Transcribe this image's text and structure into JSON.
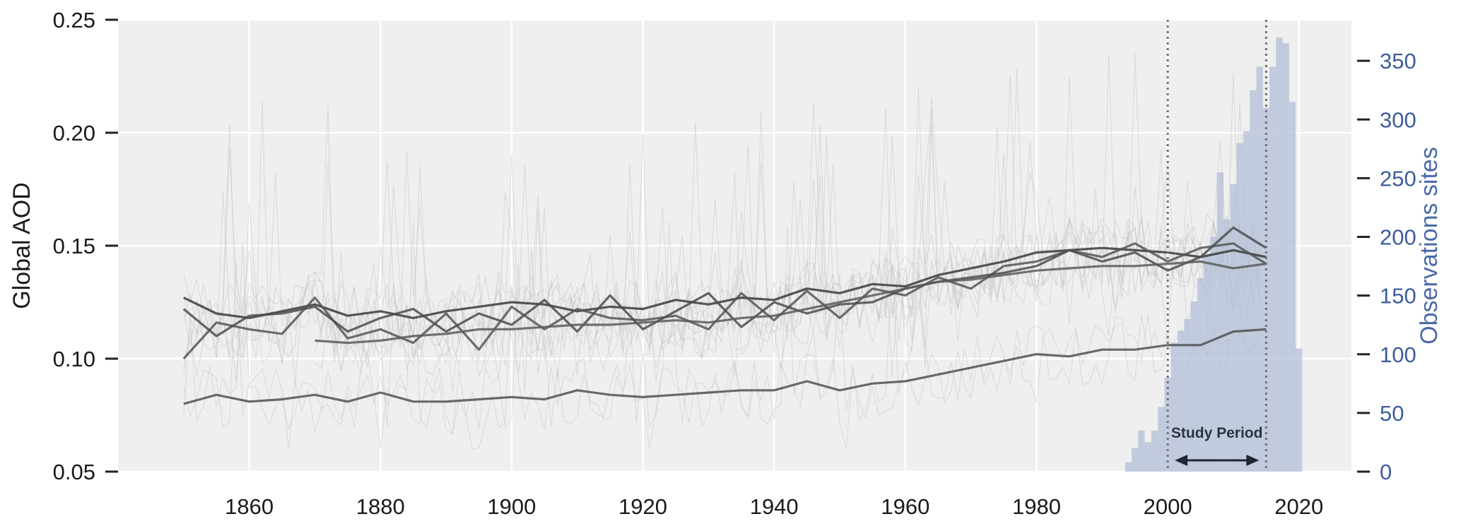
{
  "chart_data": {
    "type": "line",
    "title": "",
    "xlabel": "",
    "ylabel": "Global AOD",
    "ylabel_right": "Observations sites",
    "xlim": [
      1840,
      2028
    ],
    "ylim": [
      0.05,
      0.25
    ],
    "ylim_right": [
      0,
      385
    ],
    "x_ticks": [
      1860,
      1880,
      1900,
      1920,
      1940,
      1960,
      1980,
      2000,
      2020
    ],
    "y_ticks": [
      "0.05",
      "0.10",
      "0.15",
      "0.20",
      "0.25"
    ],
    "y_ticks_right": [
      "0",
      "50",
      "100",
      "150",
      "200",
      "250",
      "300",
      "350"
    ],
    "grid": true,
    "series": [
      {
        "x": [
          1850,
          1855,
          1860,
          1865,
          1870,
          1875,
          1880,
          1885,
          1890,
          1895,
          1900,
          1905,
          1910,
          1915,
          1920,
          1925,
          1930,
          1935,
          1940,
          1945,
          1950,
          1955,
          1960,
          1965,
          1970,
          1975,
          1980,
          1985,
          1990,
          1995,
          2000,
          2005,
          2010,
          2015
        ],
        "values": [
          0.127,
          0.12,
          0.118,
          0.121,
          0.124,
          0.119,
          0.121,
          0.118,
          0.121,
          0.123,
          0.125,
          0.124,
          0.121,
          0.123,
          0.122,
          0.126,
          0.124,
          0.127,
          0.126,
          0.131,
          0.129,
          0.133,
          0.132,
          0.137,
          0.14,
          0.143,
          0.147,
          0.148,
          0.149,
          0.148,
          0.147,
          0.145,
          0.148,
          0.145
        ]
      },
      {
        "x": [
          1850,
          1855,
          1860,
          1865,
          1870,
          1875,
          1880,
          1885,
          1890,
          1895,
          1900,
          1905,
          1910,
          1915,
          1920,
          1925,
          1930,
          1935,
          1940,
          1945,
          1950,
          1955,
          1960,
          1965,
          1970,
          1975,
          1980,
          1985,
          1990,
          1995,
          2000,
          2005,
          2010,
          2015
        ],
        "values": [
          0.1,
          0.116,
          0.113,
          0.111,
          0.127,
          0.109,
          0.113,
          0.107,
          0.12,
          0.104,
          0.123,
          0.113,
          0.122,
          0.118,
          0.117,
          0.119,
          0.113,
          0.129,
          0.117,
          0.13,
          0.118,
          0.131,
          0.128,
          0.136,
          0.131,
          0.141,
          0.143,
          0.148,
          0.145,
          0.151,
          0.143,
          0.149,
          0.151,
          0.142
        ]
      },
      {
        "x": [
          1850,
          1855,
          1860,
          1865,
          1870,
          1875,
          1880,
          1885,
          1890,
          1895,
          1900,
          1905,
          1910,
          1915,
          1920,
          1925,
          1930,
          1935,
          1940,
          1945,
          1950,
          1955,
          1960,
          1965,
          1970,
          1975,
          1980,
          1985,
          1990,
          1995,
          2000,
          2005,
          2010,
          2015
        ],
        "values": [
          0.122,
          0.11,
          0.119,
          0.12,
          0.123,
          0.112,
          0.118,
          0.122,
          0.112,
          0.12,
          0.115,
          0.126,
          0.112,
          0.128,
          0.113,
          0.121,
          0.129,
          0.114,
          0.125,
          0.12,
          0.124,
          0.125,
          0.131,
          0.134,
          0.136,
          0.138,
          0.141,
          0.148,
          0.143,
          0.147,
          0.139,
          0.145,
          0.158,
          0.149
        ]
      },
      {
        "x": [
          1870,
          1875,
          1880,
          1885,
          1890,
          1895,
          1900,
          1905,
          1910,
          1915,
          1920,
          1925,
          1930,
          1935,
          1940,
          1945,
          1950,
          1955,
          1960,
          1965,
          1970,
          1975,
          1980,
          1985,
          1990,
          1995,
          2000,
          2005,
          2010,
          2015
        ],
        "values": [
          0.108,
          0.107,
          0.108,
          0.11,
          0.111,
          0.113,
          0.113,
          0.114,
          0.115,
          0.115,
          0.116,
          0.117,
          0.116,
          0.118,
          0.119,
          0.122,
          0.125,
          0.128,
          0.131,
          0.134,
          0.135,
          0.137,
          0.139,
          0.14,
          0.141,
          0.141,
          0.142,
          0.143,
          0.14,
          0.142
        ]
      },
      {
        "x": [
          1850,
          1855,
          1860,
          1865,
          1870,
          1875,
          1880,
          1885,
          1890,
          1895,
          1900,
          1905,
          1910,
          1915,
          1920,
          1925,
          1930,
          1935,
          1940,
          1945,
          1950,
          1955,
          1960,
          1965,
          1970,
          1975,
          1980,
          1985,
          1990,
          1995,
          2000,
          2005,
          2010,
          2015
        ],
        "values": [
          0.08,
          0.084,
          0.081,
          0.082,
          0.084,
          0.081,
          0.085,
          0.081,
          0.081,
          0.082,
          0.083,
          0.082,
          0.086,
          0.084,
          0.083,
          0.084,
          0.085,
          0.086,
          0.086,
          0.09,
          0.086,
          0.089,
          0.09,
          0.093,
          0.096,
          0.099,
          0.102,
          0.101,
          0.104,
          0.104,
          0.106,
          0.106,
          0.112,
          0.113
        ]
      }
    ],
    "histogram": {
      "axis": "right",
      "x": [
        1994,
        1995,
        1996,
        1997,
        1998,
        1999,
        2000,
        2001,
        2002,
        2003,
        2004,
        2005,
        2006,
        2007,
        2008,
        2009,
        2010,
        2011,
        2012,
        2013,
        2014,
        2015,
        2016,
        2017,
        2018,
        2019,
        2020
      ],
      "values": [
        8,
        20,
        35,
        25,
        35,
        55,
        80,
        110,
        120,
        130,
        145,
        165,
        185,
        200,
        255,
        215,
        245,
        280,
        290,
        325,
        345,
        310,
        345,
        370,
        365,
        315,
        105
      ]
    },
    "vlines": [
      2000,
      2015
    ],
    "annotations": [
      "Study Period"
    ]
  }
}
